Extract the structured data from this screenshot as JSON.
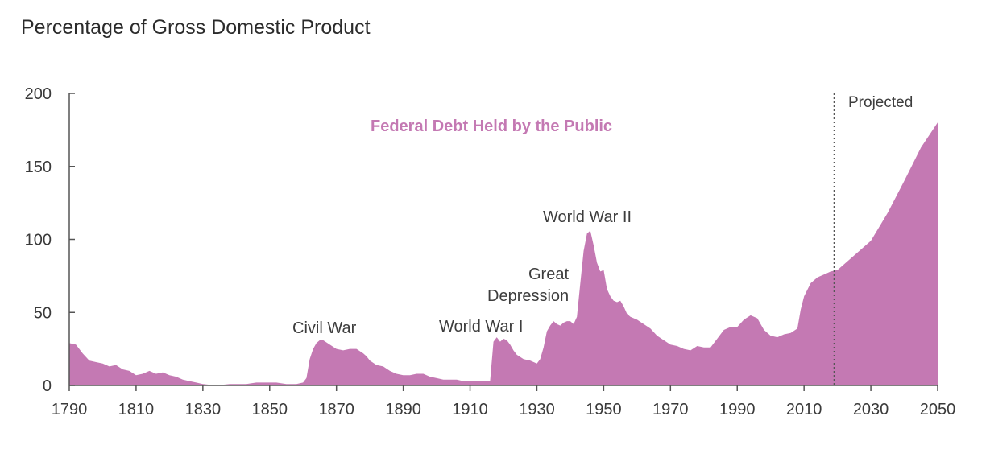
{
  "subtitle": "Percentage of Gross Domestic Product",
  "chart_data": {
    "type": "area",
    "title": "",
    "ylabel": "Percentage of Gross Domestic Product",
    "xlabel": "",
    "xlim": [
      1790,
      2050
    ],
    "ylim": [
      0,
      200
    ],
    "x_ticks": [
      "1790",
      "1810",
      "1830",
      "1850",
      "1870",
      "1890",
      "1910",
      "1930",
      "1950",
      "1970",
      "1990",
      "2010",
      "2030",
      "2050"
    ],
    "y_ticks": [
      "0",
      "50",
      "100",
      "150",
      "200"
    ],
    "grid": false,
    "color": "#c479b3",
    "series": [
      {
        "name": "Federal Debt Held by the Public",
        "x": [
          1790,
          1792,
          1794,
          1796,
          1798,
          1800,
          1802,
          1804,
          1806,
          1808,
          1810,
          1812,
          1814,
          1816,
          1818,
          1820,
          1822,
          1824,
          1826,
          1828,
          1830,
          1832,
          1834,
          1836,
          1838,
          1840,
          1843,
          1846,
          1849,
          1852,
          1855,
          1858,
          1860,
          1861,
          1862,
          1863,
          1864,
          1865,
          1866,
          1868,
          1870,
          1872,
          1874,
          1876,
          1878,
          1879,
          1880,
          1882,
          1884,
          1886,
          1888,
          1890,
          1892,
          1894,
          1896,
          1898,
          1900,
          1902,
          1904,
          1906,
          1908,
          1910,
          1912,
          1914,
          1916,
          1917,
          1918,
          1919,
          1920,
          1921,
          1922,
          1923,
          1924,
          1926,
          1928,
          1930,
          1931,
          1932,
          1933,
          1934,
          1935,
          1936,
          1937,
          1938,
          1939,
          1940,
          1941,
          1942,
          1943,
          1944,
          1945,
          1946,
          1947,
          1948,
          1949,
          1950,
          1951,
          1952,
          1953,
          1954,
          1955,
          1956,
          1957,
          1958,
          1960,
          1962,
          1964,
          1966,
          1968,
          1970,
          1972,
          1974,
          1976,
          1978,
          1980,
          1982,
          1984,
          1986,
          1988,
          1990,
          1992,
          1994,
          1996,
          1998,
          2000,
          2002,
          2004,
          2006,
          2008,
          2009,
          2010,
          2012,
          2014,
          2016,
          2018,
          2020,
          2025,
          2030,
          2035,
          2040,
          2045,
          2050
        ],
        "values": [
          29,
          28,
          22,
          17,
          16,
          15,
          13,
          14,
          11,
          10,
          7,
          8,
          10,
          8,
          9,
          7,
          6,
          4,
          3,
          2,
          1,
          0.5,
          0.5,
          0.5,
          1,
          1,
          1,
          2,
          2,
          2,
          1,
          1,
          2,
          5,
          18,
          25,
          29,
          31,
          31,
          28,
          25,
          24,
          25,
          25,
          22,
          20,
          17,
          14,
          13,
          10,
          8,
          7,
          7,
          8,
          8,
          6,
          5,
          4,
          4,
          4,
          3,
          3,
          3,
          3,
          3,
          30,
          33,
          30,
          32,
          31,
          28,
          24,
          21,
          18,
          17,
          15,
          18,
          26,
          37,
          41,
          44,
          42,
          41,
          43,
          44,
          44,
          42,
          47,
          70,
          92,
          104,
          106,
          96,
          84,
          78,
          79,
          66,
          61,
          58,
          57,
          58,
          54,
          49,
          47,
          45,
          42,
          39,
          34,
          31,
          28,
          27,
          25,
          24,
          27,
          26,
          26,
          32,
          38,
          40,
          40,
          45,
          48,
          46,
          38,
          34,
          33,
          35,
          36,
          39,
          52,
          61,
          70,
          74,
          76,
          78,
          79,
          89,
          99,
          118,
          140,
          163,
          180
        ]
      }
    ],
    "annotations": [
      "Civil War",
      "World War I",
      "Great",
      "Depression",
      "World War II",
      "Projected"
    ]
  }
}
